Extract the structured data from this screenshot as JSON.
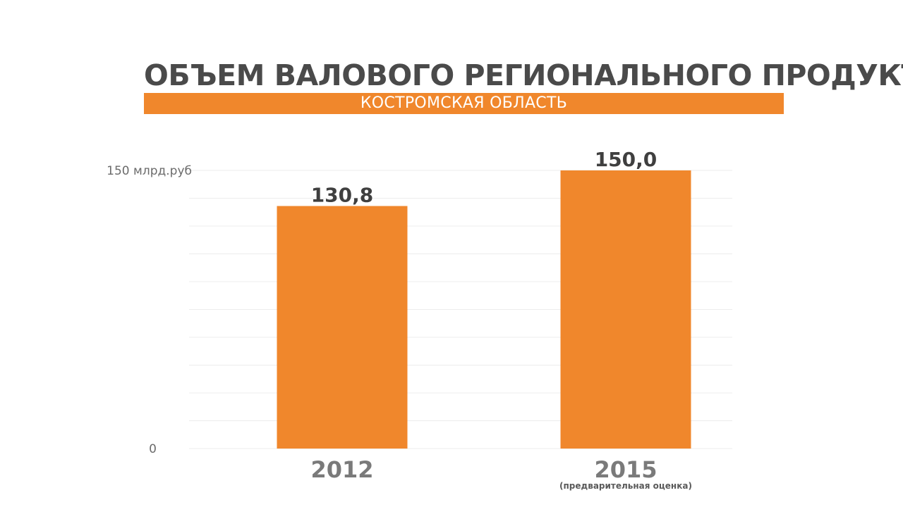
{
  "header": {
    "title": "ОБЪЕМ ВАЛОВОГО РЕГИОНАЛЬНОГО ПРОДУКТА",
    "subtitle": "КОСТРОМСКАЯ ОБЛАСТЬ"
  },
  "colors": {
    "accent": "#f0872c",
    "title": "#4a4a4a",
    "grid": "#ececec"
  },
  "chart_data": {
    "type": "bar",
    "categories": [
      "2012",
      "2015"
    ],
    "category_notes": [
      "",
      "(предварительная оценка)"
    ],
    "values": [
      130.8,
      150.0
    ],
    "value_labels": [
      "130,8",
      "150,0"
    ],
    "ylim": [
      0,
      150
    ],
    "ytick_labels": [
      "0",
      "150 млрд.руб"
    ],
    "grid": true,
    "grid_lines": 10,
    "title": "ОБЪЕМ ВАЛОВОГО РЕГИОНАЛЬНОГО ПРОДУКТА",
    "subtitle": "КОСТРОМСКАЯ ОБЛАСТЬ",
    "xlabel": "",
    "ylabel": ""
  }
}
